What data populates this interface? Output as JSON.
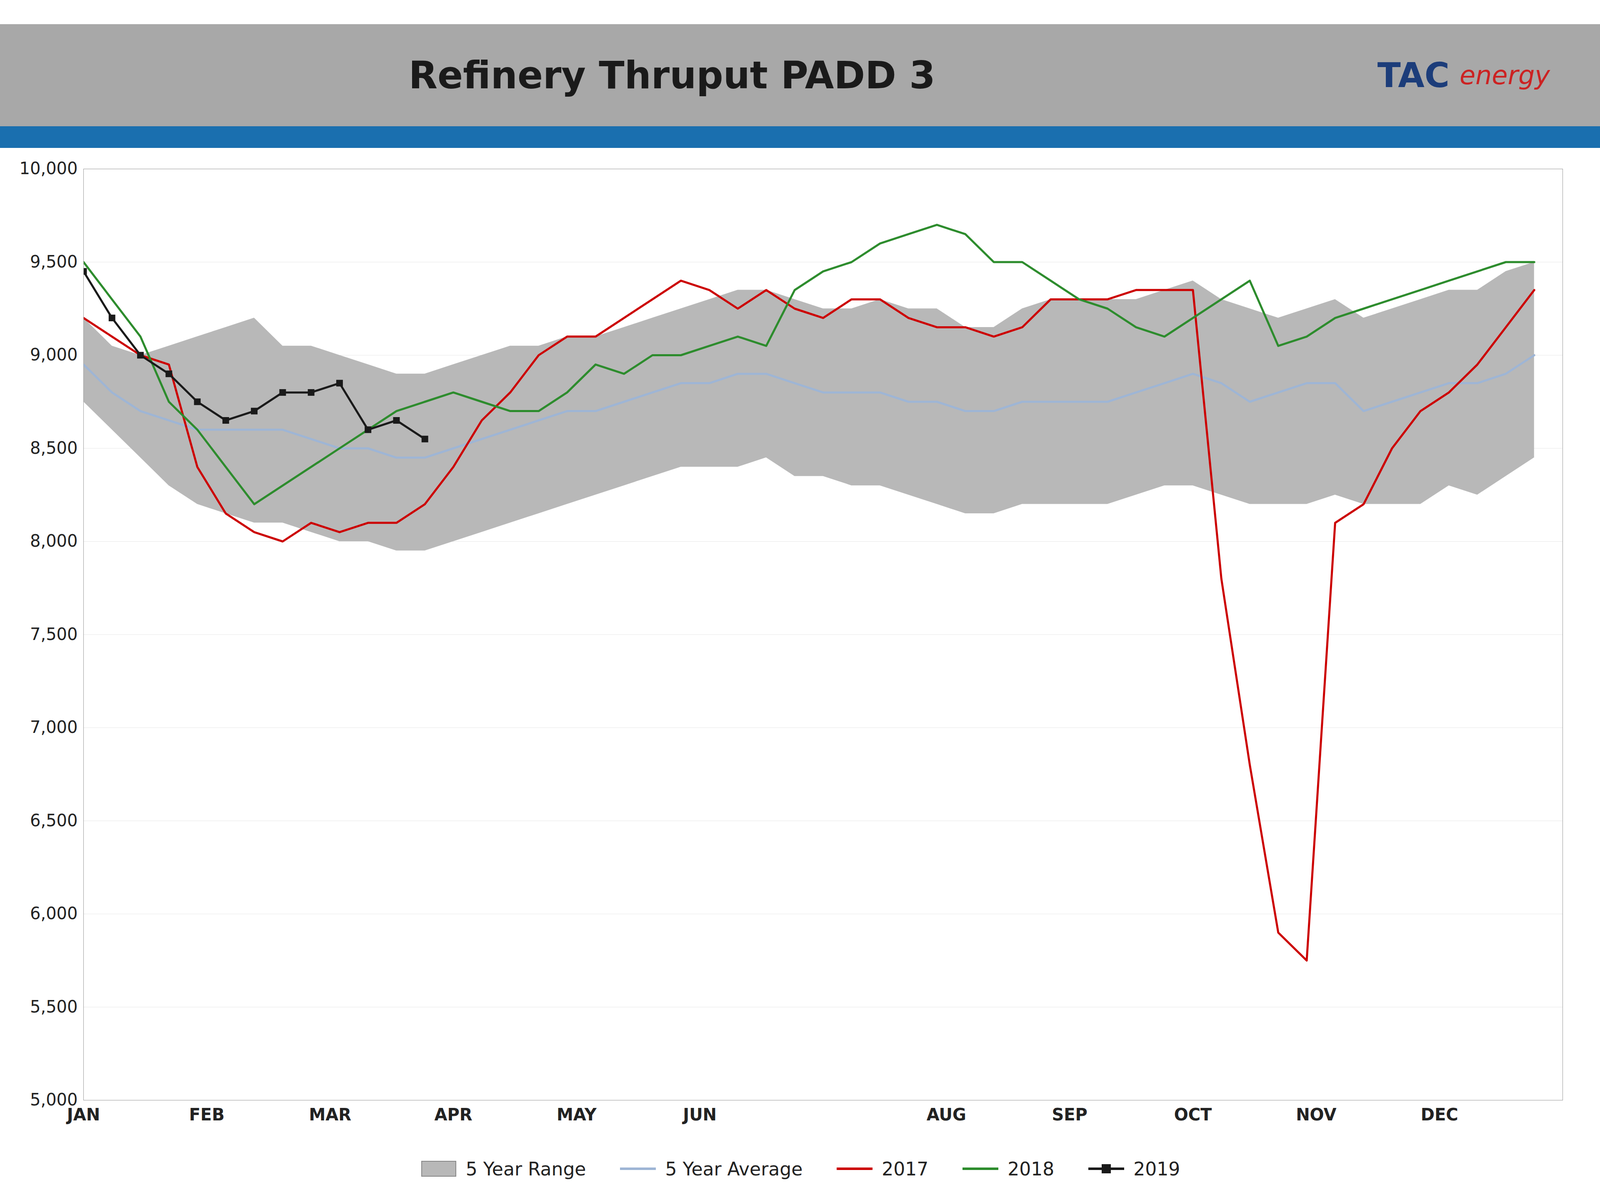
{
  "chart_data": {
    "type": "line",
    "title": "Refinery Thruput PADD 3",
    "annotations": [
      {
        "text": "TAC",
        "color": "#1c3d7a"
      },
      {
        "text": "energy",
        "color": "#cc2222"
      }
    ],
    "x": [
      0,
      0.23076923076923078,
      0.46153846153846156,
      0.6923076923076923,
      0.9230769230769231,
      1.1538461538461537,
      1.3846153846153846,
      1.6153846153846154,
      1.8461538461538463,
      2.076923076923077,
      2.3076923076923075,
      2.5384615384615383,
      2.769230769230769,
      3,
      3.230769230769231,
      3.4615384615384617,
      3.6923076923076925,
      3.923076923076923,
      4.153846153846154,
      4.384615384615385,
      4.615384615384615,
      4.846153846153846,
      5.076923076923077,
      5.3076923076923075,
      5.538461538461538,
      5.769230769230769,
      6,
      6.230769230769231,
      6.461538461538462,
      6.6923076923076925,
      6.923076923076923,
      7.153846153846154,
      7.384615384615385,
      7.615384615384615,
      7.846153846153846,
      8.076923076923077,
      8.307692307692308,
      8.538461538461538,
      8.76923076923077,
      9,
      9.23076923076923,
      9.461538461538462,
      9.692307692307692,
      9.923076923076923,
      10.153846153846153,
      10.384615384615385,
      10.615384615384615,
      10.846153846153847,
      11.076923076923077,
      11.307692307692308,
      11.538461538461538,
      11.76923076923077
    ],
    "xlim": [
      0,
      12
    ],
    "xticks": [
      {
        "value": 0,
        "label": "JAN"
      },
      {
        "value": 1,
        "label": "FEB"
      },
      {
        "value": 2,
        "label": "MAR"
      },
      {
        "value": 3,
        "label": "APR"
      },
      {
        "value": 4,
        "label": "MAY"
      },
      {
        "value": 5,
        "label": "JUN"
      },
      {
        "value": 7,
        "label": "AUG"
      },
      {
        "value": 8,
        "label": "SEP"
      },
      {
        "value": 9,
        "label": "OCT"
      },
      {
        "value": 10,
        "label": "NOV"
      },
      {
        "value": 11,
        "label": "DEC"
      }
    ],
    "ylim": [
      5000,
      10000
    ],
    "yticks": [
      {
        "value": 5000,
        "label": "5,000"
      },
      {
        "value": 5500,
        "label": "5,500"
      },
      {
        "value": 6000,
        "label": "6,000"
      },
      {
        "value": 6500,
        "label": "6,500"
      },
      {
        "value": 7000,
        "label": "7,000"
      },
      {
        "value": 7500,
        "label": "7,500"
      },
      {
        "value": 8000,
        "label": "8,000"
      },
      {
        "value": 8500,
        "label": "8,500"
      },
      {
        "value": 9000,
        "label": "9,000"
      },
      {
        "value": 9500,
        "label": "9,500"
      },
      {
        "value": 10000,
        "label": "10,000"
      }
    ],
    "grid": true,
    "legend": "bottom",
    "series": [
      {
        "name": "5 Year Range",
        "type": "area",
        "color": "#b8b8b8",
        "lower": [
          8750,
          8600,
          8450,
          8300,
          8200,
          8150,
          8100,
          8100,
          8050,
          8000,
          8000,
          7950,
          7950,
          8000,
          8050,
          8100,
          8150,
          8200,
          8250,
          8300,
          8350,
          8400,
          8400,
          8400,
          8450,
          8350,
          8350,
          8300,
          8300,
          8250,
          8200,
          8150,
          8150,
          8200,
          8200,
          8200,
          8200,
          8250,
          8300,
          8300,
          8250,
          8200,
          8200,
          8200,
          8250,
          8200,
          8200,
          8200,
          8300,
          8250,
          8350,
          8450
        ],
        "upper": [
          9200,
          9050,
          9000,
          9050,
          9100,
          9150,
          9200,
          9050,
          9050,
          9000,
          8950,
          8900,
          8900,
          8950,
          9000,
          9050,
          9050,
          9100,
          9100,
          9150,
          9200,
          9250,
          9300,
          9350,
          9350,
          9300,
          9250,
          9250,
          9300,
          9250,
          9250,
          9150,
          9150,
          9250,
          9300,
          9300,
          9300,
          9300,
          9350,
          9400,
          9300,
          9250,
          9200,
          9250,
          9300,
          9200,
          9250,
          9300,
          9350,
          9350,
          9450,
          9500
        ]
      },
      {
        "name": "5 Year Average",
        "type": "line",
        "color": "#9eb5d5",
        "values": [
          8950,
          8800,
          8700,
          8650,
          8600,
          8600,
          8600,
          8600,
          8550,
          8500,
          8500,
          8450,
          8450,
          8500,
          8550,
          8600,
          8650,
          8700,
          8700,
          8750,
          8800,
          8850,
          8850,
          8900,
          8900,
          8850,
          8800,
          8800,
          8800,
          8750,
          8750,
          8700,
          8700,
          8750,
          8750,
          8750,
          8750,
          8800,
          8850,
          8900,
          8850,
          8750,
          8800,
          8850,
          8850,
          8700,
          8750,
          8800,
          8850,
          8850,
          8900,
          9000
        ]
      },
      {
        "name": "2017",
        "type": "line",
        "color": "#cc0000",
        "values": [
          9200,
          9100,
          9000,
          8950,
          8400,
          8150,
          8050,
          8000,
          8100,
          8050,
          8100,
          8100,
          8200,
          8400,
          8650,
          8800,
          9000,
          9100,
          9100,
          9200,
          9300,
          9400,
          9350,
          9250,
          9350,
          9250,
          9200,
          9300,
          9300,
          9200,
          9150,
          9150,
          9100,
          9150,
          9300,
          9300,
          9300,
          9350,
          9350,
          9350,
          7800,
          6800,
          5900,
          5750,
          8100,
          8200,
          8500,
          8700,
          8800,
          8950,
          9150,
          9350
        ]
      },
      {
        "name": "2018",
        "type": "line",
        "color": "#2d8c2d",
        "values": [
          9500,
          9300,
          9100,
          8750,
          8600,
          8400,
          8200,
          8300,
          8400,
          8500,
          8600,
          8700,
          8750,
          8800,
          8750,
          8700,
          8700,
          8800,
          8950,
          8900,
          9000,
          9000,
          9050,
          9100,
          9050,
          9350,
          9450,
          9500,
          9600,
          9650,
          9700,
          9650,
          9500,
          9500,
          9400,
          9300,
          9250,
          9150,
          9100,
          9200,
          9300,
          9400,
          9050,
          9100,
          9200,
          9250,
          9300,
          9350,
          9400,
          9450,
          9500,
          9500
        ]
      },
      {
        "name": "2019",
        "type": "line",
        "color": "#1a1a1a",
        "marker": "square",
        "values": [
          9450,
          9200,
          9000,
          8900,
          8750,
          8650,
          8700,
          8800,
          8800,
          8850,
          8600,
          8650,
          8550,
          null,
          null,
          null,
          null,
          null,
          null,
          null,
          null,
          null,
          null,
          null,
          null,
          null,
          null,
          null,
          null,
          null,
          null,
          null,
          null,
          null,
          null,
          null,
          null,
          null,
          null,
          null,
          null,
          null,
          null,
          null,
          null,
          null,
          null,
          null,
          null,
          null,
          null,
          null
        ]
      }
    ]
  }
}
